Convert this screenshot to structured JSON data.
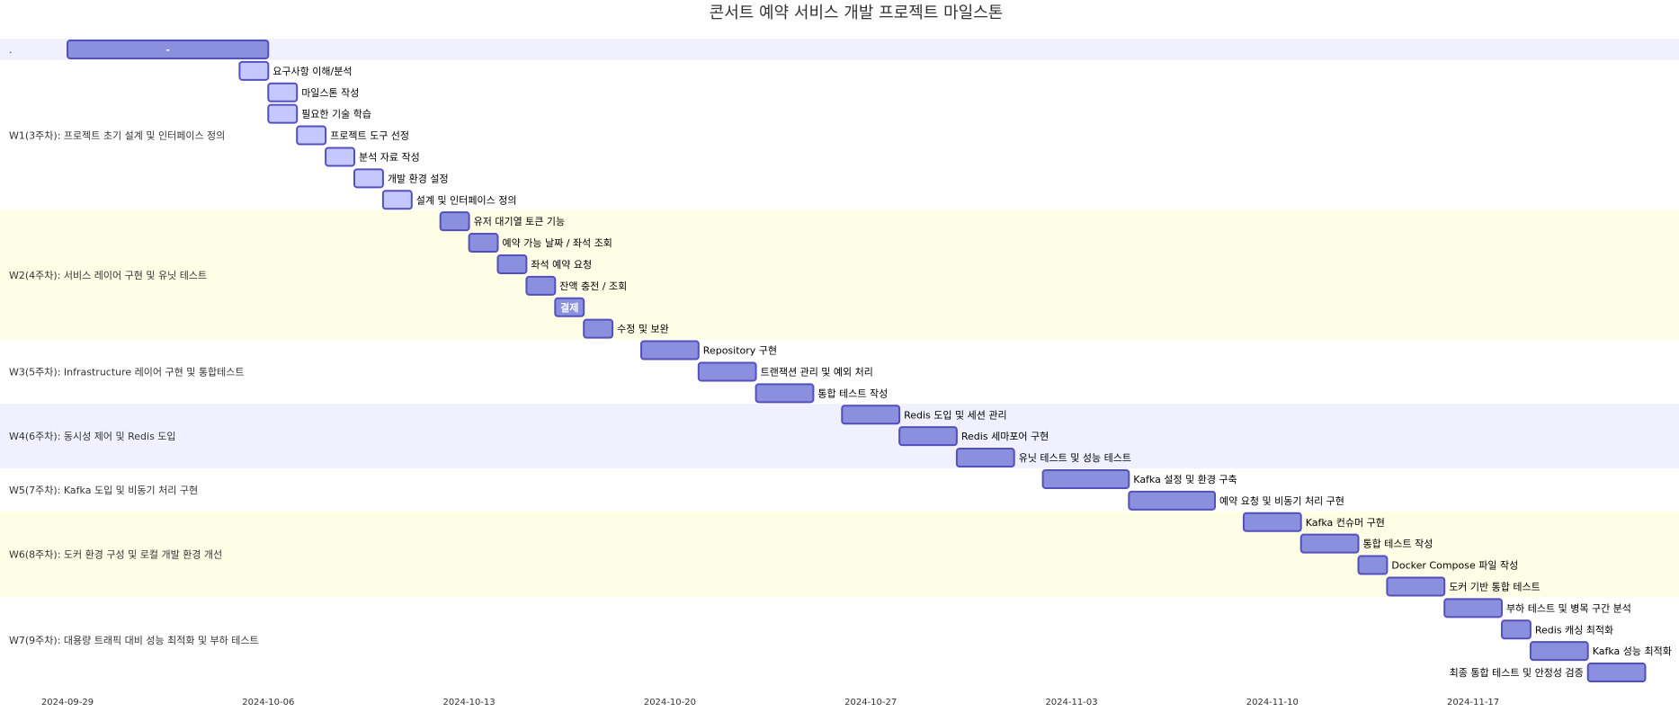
{
  "chart_data": {
    "type": "gantt",
    "title": "콘서트 예약 서비스 개발 프로젝트 마일스톤",
    "xlabel": "",
    "ylabel": "",
    "x_range": [
      "2024-09-29",
      "2024-11-24"
    ],
    "x_ticks": [
      "2024-09-29",
      "2024-10-06",
      "2024-10-13",
      "2024-10-20",
      "2024-10-27",
      "2024-11-03",
      "2024-11-10",
      "2024-11-17"
    ],
    "grid": false,
    "colors": {
      "band_alt": "#f0f0ff",
      "band_alt2": "#fefee6",
      "band_plain": "#ffffff",
      "task_fill": "#8a90dd",
      "task_fill_light": "#c4c8ff",
      "task_stroke": "#534fbc"
    },
    "sections": [
      {
        "name": ".",
        "band": "band_alt",
        "tasks": [
          {
            "label": "-",
            "start": "2024-09-29",
            "end": "2024-10-06",
            "style": "dark",
            "label_pos": "inside"
          }
        ]
      },
      {
        "name": "W1(3주차): 프로젝트 초기 설계 및 인터페이스 정의",
        "band": "band_plain",
        "tasks": [
          {
            "label": "요구사항 이해/분석",
            "start": "2024-10-05",
            "end": "2024-10-06",
            "style": "light",
            "label_pos": "right"
          },
          {
            "label": "마일스톤 작성",
            "start": "2024-10-06",
            "end": "2024-10-07",
            "style": "light",
            "label_pos": "right"
          },
          {
            "label": "필요한 기술 학습",
            "start": "2024-10-06",
            "end": "2024-10-07",
            "style": "light",
            "label_pos": "right"
          },
          {
            "label": "프로젝트 도구 선정",
            "start": "2024-10-07",
            "end": "2024-10-08",
            "style": "light",
            "label_pos": "right"
          },
          {
            "label": "분석 자료 작성",
            "start": "2024-10-08",
            "end": "2024-10-09",
            "style": "light",
            "label_pos": "right"
          },
          {
            "label": "개발 환경 설정",
            "start": "2024-10-09",
            "end": "2024-10-10",
            "style": "light",
            "label_pos": "right"
          },
          {
            "label": "설계 및 인터페이스 정의",
            "start": "2024-10-10",
            "end": "2024-10-11",
            "style": "light",
            "label_pos": "right"
          }
        ]
      },
      {
        "name": "W2(4주차): 서비스 레이어 구현 및 유닛 테스트",
        "band": "band_alt2",
        "tasks": [
          {
            "label": "유저 대기열 토큰 기능",
            "start": "2024-10-12",
            "end": "2024-10-13",
            "style": "dark",
            "label_pos": "right"
          },
          {
            "label": "예약 가능 날짜 / 좌석 조회",
            "start": "2024-10-13",
            "end": "2024-10-14",
            "style": "dark",
            "label_pos": "right"
          },
          {
            "label": "좌석 예약 요청",
            "start": "2024-10-14",
            "end": "2024-10-15",
            "style": "dark",
            "label_pos": "right"
          },
          {
            "label": "잔액 충전 / 조회",
            "start": "2024-10-15",
            "end": "2024-10-16",
            "style": "dark",
            "label_pos": "right"
          },
          {
            "label": "결제",
            "start": "2024-10-16",
            "end": "2024-10-17",
            "style": "dark",
            "label_pos": "inside"
          },
          {
            "label": "수정 및 보완",
            "start": "2024-10-17",
            "end": "2024-10-18",
            "style": "dark",
            "label_pos": "right"
          }
        ]
      },
      {
        "name": "W3(5주차): Infrastructure 레이어 구현 및 통합테스트",
        "band": "band_plain",
        "tasks": [
          {
            "label": "Repository 구현",
            "start": "2024-10-19",
            "end": "2024-10-21",
            "style": "dark",
            "label_pos": "right"
          },
          {
            "label": "트랜잭션 관리 및 예외 처리",
            "start": "2024-10-21",
            "end": "2024-10-23",
            "style": "dark",
            "label_pos": "right"
          },
          {
            "label": "통합 테스트 작성",
            "start": "2024-10-23",
            "end": "2024-10-25",
            "style": "dark",
            "label_pos": "right"
          }
        ]
      },
      {
        "name": "W4(6주차): 동시성 제어 및 Redis 도입",
        "band": "band_alt",
        "tasks": [
          {
            "label": "Redis 도입 및 세션 관리",
            "start": "2024-10-26",
            "end": "2024-10-28",
            "style": "dark",
            "label_pos": "right"
          },
          {
            "label": "Redis 세마포어 구현",
            "start": "2024-10-28",
            "end": "2024-10-30",
            "style": "dark",
            "label_pos": "right"
          },
          {
            "label": "유닛 테스트 및 성능 테스트",
            "start": "2024-10-30",
            "end": "2024-11-01",
            "style": "dark",
            "label_pos": "right"
          }
        ]
      },
      {
        "name": "W5(7주차): Kafka 도입 및 비동기 처리 구현",
        "band": "band_plain",
        "tasks": [
          {
            "label": "Kafka 설정 및 환경 구축",
            "start": "2024-11-02",
            "end": "2024-11-05",
            "style": "dark",
            "label_pos": "right"
          },
          {
            "label": "예약 요청 및 비동기 처리 구현",
            "start": "2024-11-05",
            "end": "2024-11-08",
            "style": "dark",
            "label_pos": "right"
          }
        ]
      },
      {
        "name": "W6(8주차): 도커 환경 구성 및 로컬 개발 환경 개선",
        "band": "band_alt2",
        "tasks": [
          {
            "label": "Kafka 컨슈머 구현",
            "start": "2024-11-09",
            "end": "2024-11-11",
            "style": "dark",
            "label_pos": "right"
          },
          {
            "label": "통합 테스트 작성",
            "start": "2024-11-11",
            "end": "2024-11-13",
            "style": "dark",
            "label_pos": "right"
          },
          {
            "label": "Docker Compose 파일 작성",
            "start": "2024-11-13",
            "end": "2024-11-14",
            "style": "dark",
            "label_pos": "right"
          },
          {
            "label": "도커 기반 통합 테스트",
            "start": "2024-11-14",
            "end": "2024-11-16",
            "style": "dark",
            "label_pos": "right"
          }
        ]
      },
      {
        "name": "W7(9주차): 대용량 트래픽 대비 성능 최적화 및 부하 테스트",
        "band": "band_plain",
        "tasks": [
          {
            "label": "부하 테스트 및 병목 구간 분석",
            "start": "2024-11-16",
            "end": "2024-11-18",
            "style": "dark",
            "label_pos": "right"
          },
          {
            "label": "Redis 캐싱 최적화",
            "start": "2024-11-18",
            "end": "2024-11-19",
            "style": "dark",
            "label_pos": "right"
          },
          {
            "label": "Kafka 성능 최적화",
            "start": "2024-11-19",
            "end": "2024-11-21",
            "style": "dark",
            "label_pos": "right"
          },
          {
            "label": "최종 통합 테스트 및 안정성 검증",
            "start": "2024-11-21",
            "end": "2024-11-23",
            "style": "dark",
            "label_pos": "left"
          }
        ]
      }
    ]
  }
}
